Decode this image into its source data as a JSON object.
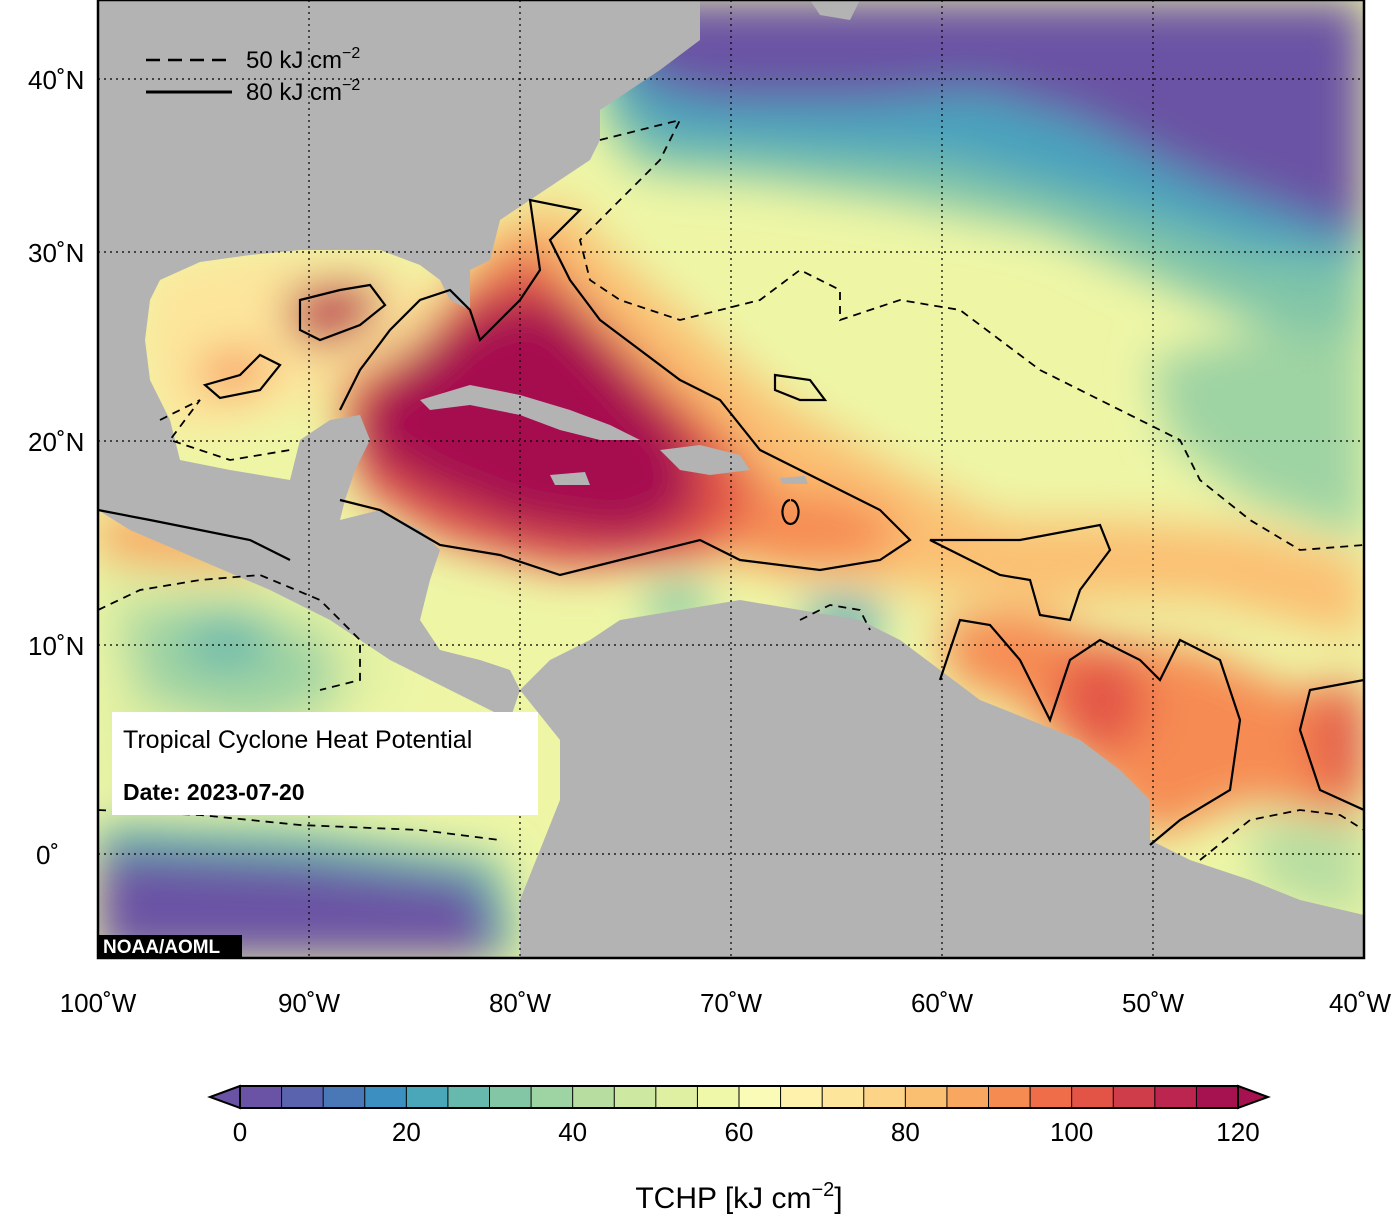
{
  "title": "Tropical Cyclone Heat Potential",
  "date_label": "Date: 2023-07-20",
  "credit": "NOAA/AOML",
  "legend": [
    {
      "style": "dashed",
      "label": "50 kJ cm",
      "exp": "−2"
    },
    {
      "style": "solid",
      "label": "80 kJ cm",
      "exp": "−2"
    }
  ],
  "axes": {
    "x_ticks": [
      "100˚W",
      "90˚W",
      "80˚W",
      "70˚W",
      "60˚W",
      "50˚W",
      "40˚W"
    ],
    "y_ticks": [
      "40˚N",
      "30˚N",
      "20˚N",
      "10˚N",
      "0˚"
    ]
  },
  "colorbar": {
    "title_main": "TCHP [kJ cm",
    "title_exp": "−2",
    "title_end": "]",
    "tick_labels": [
      "0",
      "20",
      "40",
      "60",
      "80",
      "100",
      "120"
    ],
    "min": 0,
    "max": 120,
    "step": 5,
    "colors": [
      "#6a53a4",
      "#5a63ad",
      "#4a78b7",
      "#3b8fc1",
      "#4aa6b9",
      "#67b8ad",
      "#82c6a6",
      "#9ed3a3",
      "#b7dda1",
      "#cde8a0",
      "#e0f0a2",
      "#eff7a9",
      "#fafbb7",
      "#fff2ad",
      "#fde59b",
      "#fcd387",
      "#fbbf72",
      "#f9a660",
      "#f68b52",
      "#ef6e49",
      "#e35447",
      "#d03d4a",
      "#bb2550",
      "#a6114f"
    ]
  }
}
